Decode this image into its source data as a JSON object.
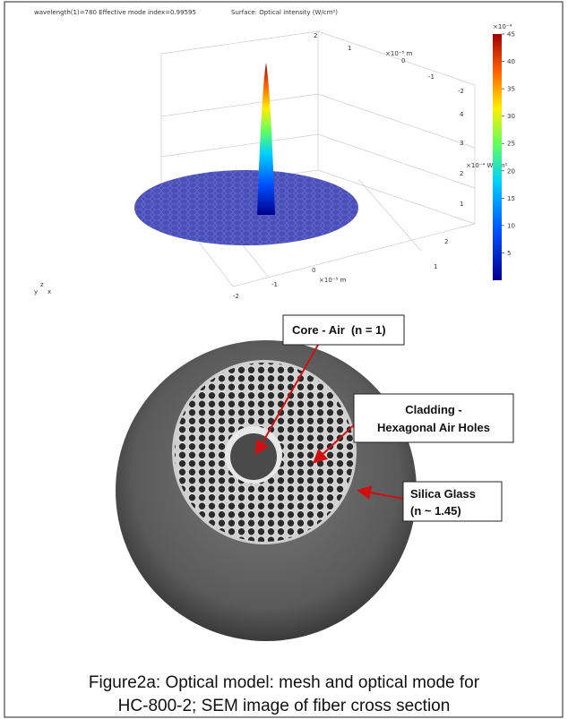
{
  "plot": {
    "header": "wavelength(1)=780 Effective mode index=0.99595",
    "surface_label": "Surface: Optical intensity (W/cm²)",
    "back_axis_ticks": [
      2,
      1,
      0,
      -1,
      -2
    ],
    "back_axis_unit": "×10⁻⁵ m",
    "z_ticks": [
      1,
      2,
      3,
      4
    ],
    "z_unit": "×10⁻⁴ W/cm²",
    "front_axis_ticks": [
      -2,
      -1,
      0,
      1,
      2
    ],
    "front_axis_unit": "×10⁻⁵ m",
    "orientation": [
      "y",
      "z",
      "x"
    ]
  },
  "colorbar": {
    "exponent": "×10⁻⁴",
    "ticks": [
      5,
      10,
      15,
      20,
      25,
      30,
      35,
      40,
      45
    ]
  },
  "annotations": {
    "core": "Core - Air  (n = 1)",
    "cladding": [
      "Cladding -",
      "Hexagonal Air Holes"
    ],
    "silica": [
      "Silica Glass",
      "(n ~ 1.45)"
    ]
  },
  "caption": [
    "Figure2a: Optical model: mesh and optical mode for",
    "HC-800-2; SEM image of fiber cross section"
  ]
}
